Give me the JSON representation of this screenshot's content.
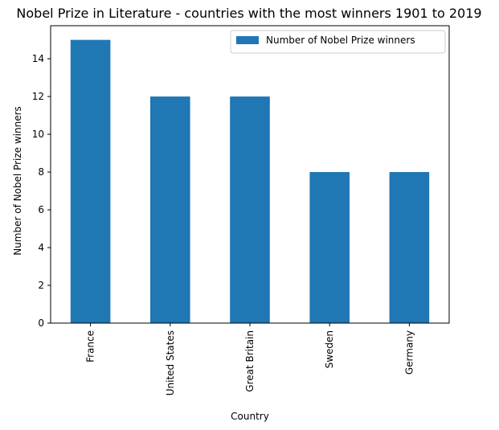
{
  "chart_data": {
    "type": "bar",
    "title": "Nobel Prize in Literature - countries with the most winners 1901 to 2019",
    "xlabel": "Country",
    "ylabel": "Number of Nobel Prize winners",
    "categories": [
      "France",
      "United States",
      "Great Britain",
      "Sweden",
      "Germany"
    ],
    "series": [
      {
        "name": "Number of Nobel Prize winners",
        "values": [
          15,
          12,
          12,
          8,
          8
        ],
        "color": "#1f77b4"
      }
    ],
    "ylim": [
      0,
      15.75
    ],
    "yticks": [
      0,
      2,
      4,
      6,
      8,
      10,
      12,
      14
    ],
    "grid": false,
    "legend_position": "top-right"
  }
}
